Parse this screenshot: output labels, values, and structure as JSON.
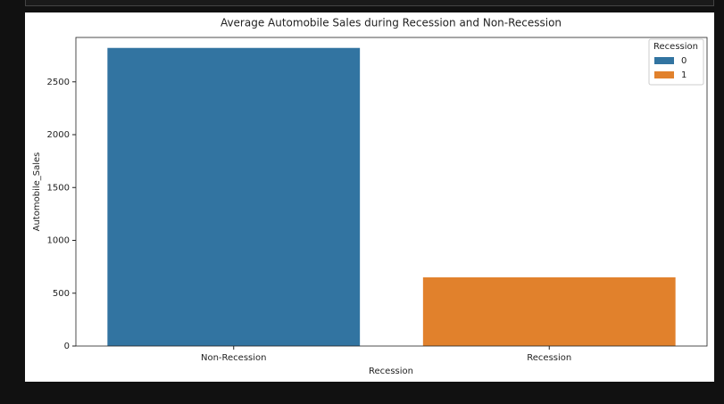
{
  "chart_data": {
    "type": "bar",
    "title": "Average Automobile Sales during Recession and Non-Recession",
    "xlabel": "Recession",
    "ylabel": "Automobile_Sales",
    "categories": [
      "Non-Recession",
      "Recession"
    ],
    "series": [
      {
        "name": "0",
        "color": "#3274a1",
        "values": [
          2821,
          null
        ]
      },
      {
        "name": "1",
        "color": "#e1812c",
        "values": [
          null,
          650
        ]
      }
    ],
    "legend_title": "Recession",
    "legend": "upper right",
    "ylim": [
      0,
      2920
    ],
    "yticks": [
      0,
      500,
      1000,
      1500,
      2000,
      2500
    ]
  }
}
